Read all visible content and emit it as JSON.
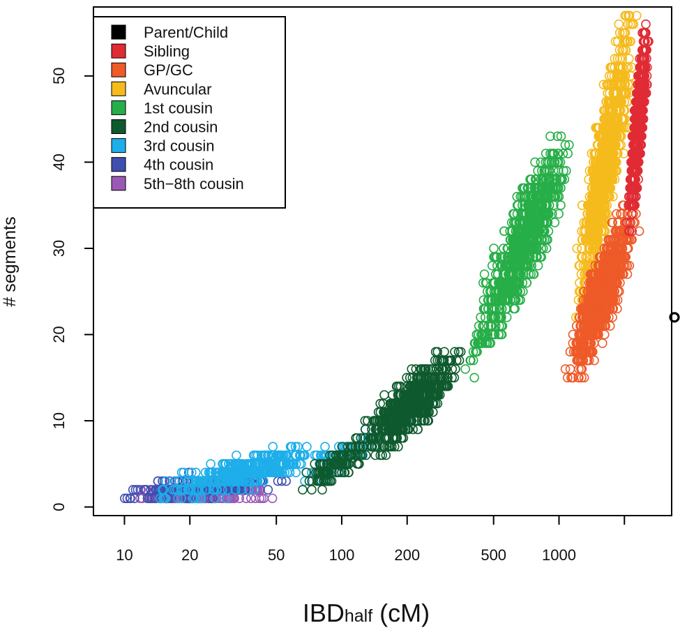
{
  "chart_data": {
    "type": "scatter",
    "title": "",
    "xlabel": {
      "main": "IBD",
      "sub": "half",
      "unit": " (cM)"
    },
    "ylabel": "# segments",
    "x_scale": "log",
    "xlim": [
      7.2,
      3300
    ],
    "ylim": [
      -1,
      58
    ],
    "x_ticks": [
      {
        "value": 10,
        "label": "10"
      },
      {
        "value": 20,
        "label": "20"
      },
      {
        "value": 50,
        "label": "50"
      },
      {
        "value": 100,
        "label": "100"
      },
      {
        "value": 200,
        "label": "200"
      },
      {
        "value": 500,
        "label": "500"
      },
      {
        "value": 1000,
        "label": "1000"
      },
      {
        "value": 2000,
        "label": ""
      }
    ],
    "y_ticks": [
      {
        "value": 0,
        "label": "0"
      },
      {
        "value": 10,
        "label": "10"
      },
      {
        "value": 20,
        "label": "20"
      },
      {
        "value": 30,
        "label": "30"
      },
      {
        "value": 40,
        "label": "40"
      },
      {
        "value": 50,
        "label": "50"
      }
    ],
    "grid": false,
    "legend_position": "top-left",
    "marker": "open-circle",
    "series": [
      {
        "name": "5th−8th cousin",
        "color": "#9B59B6",
        "clusters": [
          {
            "x_range": [
              8,
              60
            ],
            "y_range": [
              1,
              2
            ],
            "n": 260
          }
        ]
      },
      {
        "name": "4th cousin",
        "color": "#3F4FB0",
        "clusters": [
          {
            "x_range": [
              8,
              75
            ],
            "y_range": [
              1,
              4
            ],
            "n": 260
          }
        ]
      },
      {
        "name": "3rd cousin",
        "color": "#1EAEEA",
        "clusters": [
          {
            "x_range": [
              12,
              100
            ],
            "y_range": [
              1,
              7
            ],
            "n": 430
          },
          {
            "x_range": [
              60,
              180
            ],
            "y_range": [
              3,
              9
            ],
            "n": 80
          }
        ]
      },
      {
        "name": "2nd cousin",
        "color": "#0E5A2E",
        "clusters": [
          {
            "x_range": [
              60,
              150
            ],
            "y_range": [
              2,
              8
            ],
            "n": 120
          },
          {
            "x_range": [
              100,
              400
            ],
            "y_range": [
              5,
              18
            ],
            "n": 650
          }
        ]
      },
      {
        "name": "1st cousin",
        "color": "#27AE48",
        "clusters": [
          {
            "x_range": [
              400,
              1200
            ],
            "y_range": [
              19,
              43
            ],
            "n": 950
          },
          {
            "x_range": [
              350,
              550
            ],
            "y_range": [
              15,
              24
            ],
            "n": 40
          }
        ]
      },
      {
        "name": "Avuncular",
        "color": "#F5BA1C",
        "clusters": [
          {
            "x_range": [
              1150,
              2300
            ],
            "y_range": [
              22,
              57
            ],
            "n": 1000
          }
        ]
      },
      {
        "name": "GP/GC",
        "color": "#EE5A28",
        "clusters": [
          {
            "x_range": [
              1050,
              2400
            ],
            "y_range": [
              15,
              35
            ],
            "n": 1000
          }
        ]
      },
      {
        "name": "Sibling",
        "color": "#E02B35",
        "clusters": [
          {
            "x_range": [
              2050,
              2600
            ],
            "y_range": [
              32,
              56
            ],
            "n": 750
          }
        ]
      },
      {
        "name": "Parent/Child",
        "color": "#000000",
        "points": [
          {
            "x": 3400,
            "y": 22
          }
        ]
      }
    ],
    "legend": [
      {
        "label": "Parent/Child",
        "color": "#000000"
      },
      {
        "label": "Sibling",
        "color": "#E02B35"
      },
      {
        "label": "GP/GC",
        "color": "#EE5A28"
      },
      {
        "label": "Avuncular",
        "color": "#F5BA1C"
      },
      {
        "label": "1st cousin",
        "color": "#27AE48"
      },
      {
        "label": "2nd cousin",
        "color": "#0E5A2E"
      },
      {
        "label": "3rd cousin",
        "color": "#1EAEEA"
      },
      {
        "label": "4th cousin",
        "color": "#3F4FB0"
      },
      {
        "label": "5th−8th cousin",
        "color": "#9B59B6"
      }
    ]
  }
}
